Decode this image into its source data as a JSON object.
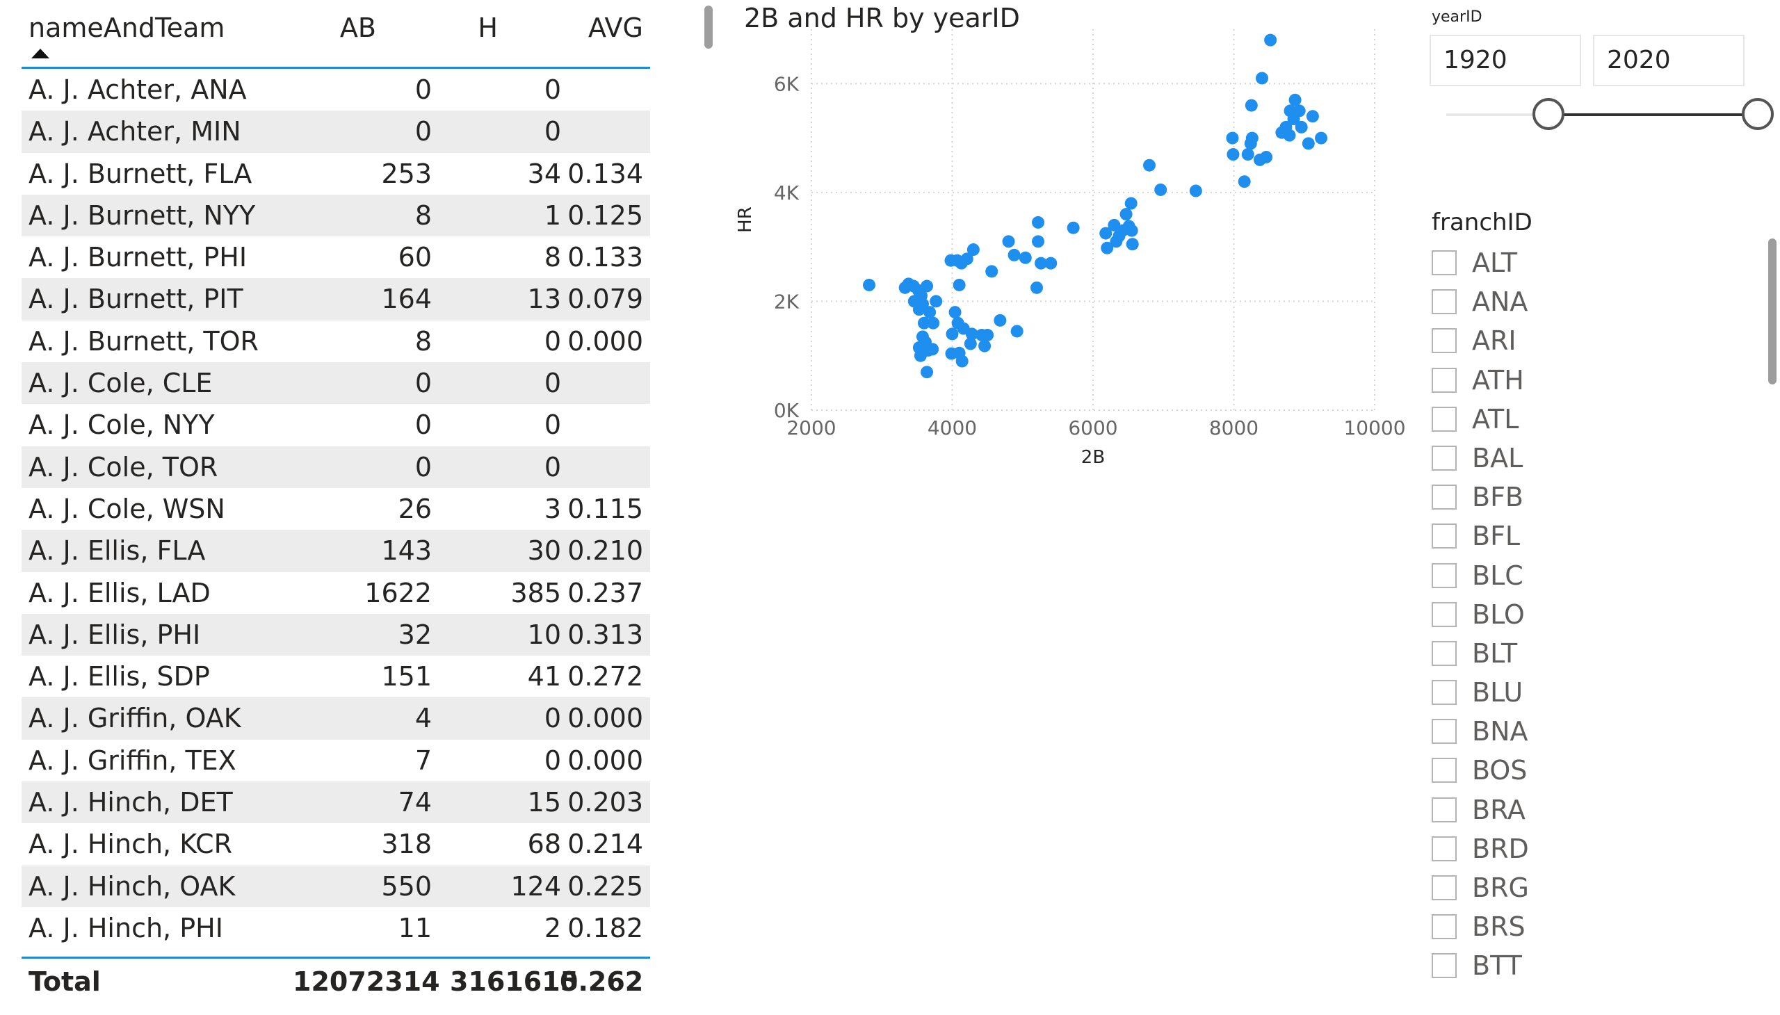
{
  "table": {
    "columns": {
      "name": "nameAndTeam",
      "ab": "AB",
      "h": "H",
      "avg": "AVG"
    },
    "rows": [
      {
        "name": "A. J. Achter, ANA",
        "ab": "0",
        "h": "0",
        "avg": ""
      },
      {
        "name": "A. J. Achter, MIN",
        "ab": "0",
        "h": "0",
        "avg": ""
      },
      {
        "name": "A. J. Burnett, FLA",
        "ab": "253",
        "h": "34",
        "avg": "0.134"
      },
      {
        "name": "A. J. Burnett, NYY",
        "ab": "8",
        "h": "1",
        "avg": "0.125"
      },
      {
        "name": "A. J. Burnett, PHI",
        "ab": "60",
        "h": "8",
        "avg": "0.133"
      },
      {
        "name": "A. J. Burnett, PIT",
        "ab": "164",
        "h": "13",
        "avg": "0.079"
      },
      {
        "name": "A. J. Burnett, TOR",
        "ab": "8",
        "h": "0",
        "avg": "0.000"
      },
      {
        "name": "A. J. Cole, CLE",
        "ab": "0",
        "h": "0",
        "avg": ""
      },
      {
        "name": "A. J. Cole, NYY",
        "ab": "0",
        "h": "0",
        "avg": ""
      },
      {
        "name": "A. J. Cole, TOR",
        "ab": "0",
        "h": "0",
        "avg": ""
      },
      {
        "name": "A. J. Cole, WSN",
        "ab": "26",
        "h": "3",
        "avg": "0.115"
      },
      {
        "name": "A. J. Ellis, FLA",
        "ab": "143",
        "h": "30",
        "avg": "0.210"
      },
      {
        "name": "A. J. Ellis, LAD",
        "ab": "1622",
        "h": "385",
        "avg": "0.237"
      },
      {
        "name": "A. J. Ellis, PHI",
        "ab": "32",
        "h": "10",
        "avg": "0.313"
      },
      {
        "name": "A. J. Ellis, SDP",
        "ab": "151",
        "h": "41",
        "avg": "0.272"
      },
      {
        "name": "A. J. Griffin, OAK",
        "ab": "4",
        "h": "0",
        "avg": "0.000"
      },
      {
        "name": "A. J. Griffin, TEX",
        "ab": "7",
        "h": "0",
        "avg": "0.000"
      },
      {
        "name": "A. J. Hinch, DET",
        "ab": "74",
        "h": "15",
        "avg": "0.203"
      },
      {
        "name": "A. J. Hinch, KCR",
        "ab": "318",
        "h": "68",
        "avg": "0.214"
      },
      {
        "name": "A. J. Hinch, OAK",
        "ab": "550",
        "h": "124",
        "avg": "0.225"
      },
      {
        "name": "A. J. Hinch, PHI",
        "ab": "11",
        "h": "2",
        "avg": "0.182"
      }
    ],
    "total": {
      "label": "Total",
      "ab": "12072314",
      "h": "3161615",
      "avg": "0.262"
    },
    "header_border_color": "#1b8ad8",
    "sort_icon": "sort-ascending-icon"
  },
  "chart_title": "2B and HR by yearID",
  "chart_data": {
    "type": "scatter",
    "title": "2B and HR by yearID",
    "xlabel": "2B",
    "ylabel": "HR",
    "xlim": [
      2000,
      10000
    ],
    "ylim": [
      0,
      7000
    ],
    "x_ticks": [
      "2000",
      "4000",
      "6000",
      "8000",
      "10000"
    ],
    "y_ticks": [
      "0K",
      "2K",
      "4K",
      "6K"
    ],
    "x_tick_values": [
      2000,
      4000,
      6000,
      8000,
      10000
    ],
    "y_tick_values": [
      0,
      2000,
      4000,
      6000
    ],
    "grid": true,
    "color": "#1e8fef",
    "points": [
      [
        2820,
        2300
      ],
      [
        3330,
        2250
      ],
      [
        3380,
        2320
      ],
      [
        3450,
        2280
      ],
      [
        3460,
        2000
      ],
      [
        3520,
        2200
      ],
      [
        3530,
        1850
      ],
      [
        3560,
        2100
      ],
      [
        3580,
        1950
      ],
      [
        3600,
        1600
      ],
      [
        3640,
        2280
      ],
      [
        3680,
        1800
      ],
      [
        3580,
        1350
      ],
      [
        3620,
        1250
      ],
      [
        3550,
        1000
      ],
      [
        3530,
        1150
      ],
      [
        3660,
        1100
      ],
      [
        3730,
        1600
      ],
      [
        3640,
        700
      ],
      [
        3770,
        2000
      ],
      [
        3720,
        1120
      ],
      [
        3980,
        2750
      ],
      [
        4000,
        1400
      ],
      [
        3990,
        1040
      ],
      [
        4040,
        1800
      ],
      [
        4070,
        2750
      ],
      [
        4130,
        2700
      ],
      [
        4080,
        1600
      ],
      [
        4100,
        1050
      ],
      [
        4140,
        900
      ],
      [
        4160,
        1500
      ],
      [
        4100,
        2300
      ],
      [
        4210,
        2780
      ],
      [
        4260,
        1220
      ],
      [
        4280,
        1400
      ],
      [
        4300,
        2950
      ],
      [
        4420,
        1380
      ],
      [
        4460,
        1180
      ],
      [
        4500,
        1380
      ],
      [
        4560,
        2550
      ],
      [
        4680,
        1650
      ],
      [
        4800,
        3100
      ],
      [
        4880,
        2850
      ],
      [
        4920,
        1450
      ],
      [
        5040,
        2800
      ],
      [
        5200,
        2250
      ],
      [
        5260,
        2700
      ],
      [
        5220,
        3100
      ],
      [
        5220,
        3450
      ],
      [
        5400,
        2700
      ],
      [
        5720,
        3350
      ],
      [
        6200,
        2980
      ],
      [
        6180,
        3250
      ],
      [
        6300,
        3400
      ],
      [
        6330,
        3100
      ],
      [
        6370,
        3200
      ],
      [
        6420,
        3300
      ],
      [
        6470,
        3600
      ],
      [
        6510,
        3380
      ],
      [
        6540,
        3800
      ],
      [
        6560,
        3050
      ],
      [
        6550,
        3300
      ],
      [
        6800,
        4500
      ],
      [
        6960,
        4050
      ],
      [
        7460,
        4030
      ],
      [
        7980,
        5000
      ],
      [
        7990,
        4700
      ],
      [
        8150,
        4200
      ],
      [
        8200,
        4700
      ],
      [
        8240,
        4900
      ],
      [
        8250,
        5600
      ],
      [
        8260,
        5000
      ],
      [
        8370,
        4600
      ],
      [
        8400,
        6100
      ],
      [
        8460,
        4650
      ],
      [
        8520,
        6800
      ],
      [
        8680,
        5100
      ],
      [
        8740,
        5200
      ],
      [
        8790,
        5050
      ],
      [
        8800,
        5500
      ],
      [
        8850,
        5350
      ],
      [
        8870,
        5700
      ],
      [
        8930,
        5500
      ],
      [
        8960,
        5200
      ],
      [
        9060,
        4900
      ],
      [
        9120,
        5400
      ],
      [
        9240,
        5000
      ]
    ]
  },
  "year_slicer": {
    "caption": "yearID",
    "start": "1920",
    "end": "2020",
    "range": [
      1871,
      2020
    ],
    "selected": [
      1920,
      2020
    ]
  },
  "franch_slicer": {
    "title": "franchID",
    "items": [
      "ALT",
      "ANA",
      "ARI",
      "ATH",
      "ATL",
      "BAL",
      "BFB",
      "BFL",
      "BLC",
      "BLO",
      "BLT",
      "BLU",
      "BNA",
      "BOS",
      "BRA",
      "BRD",
      "BRG",
      "BRS",
      "BTT"
    ]
  }
}
